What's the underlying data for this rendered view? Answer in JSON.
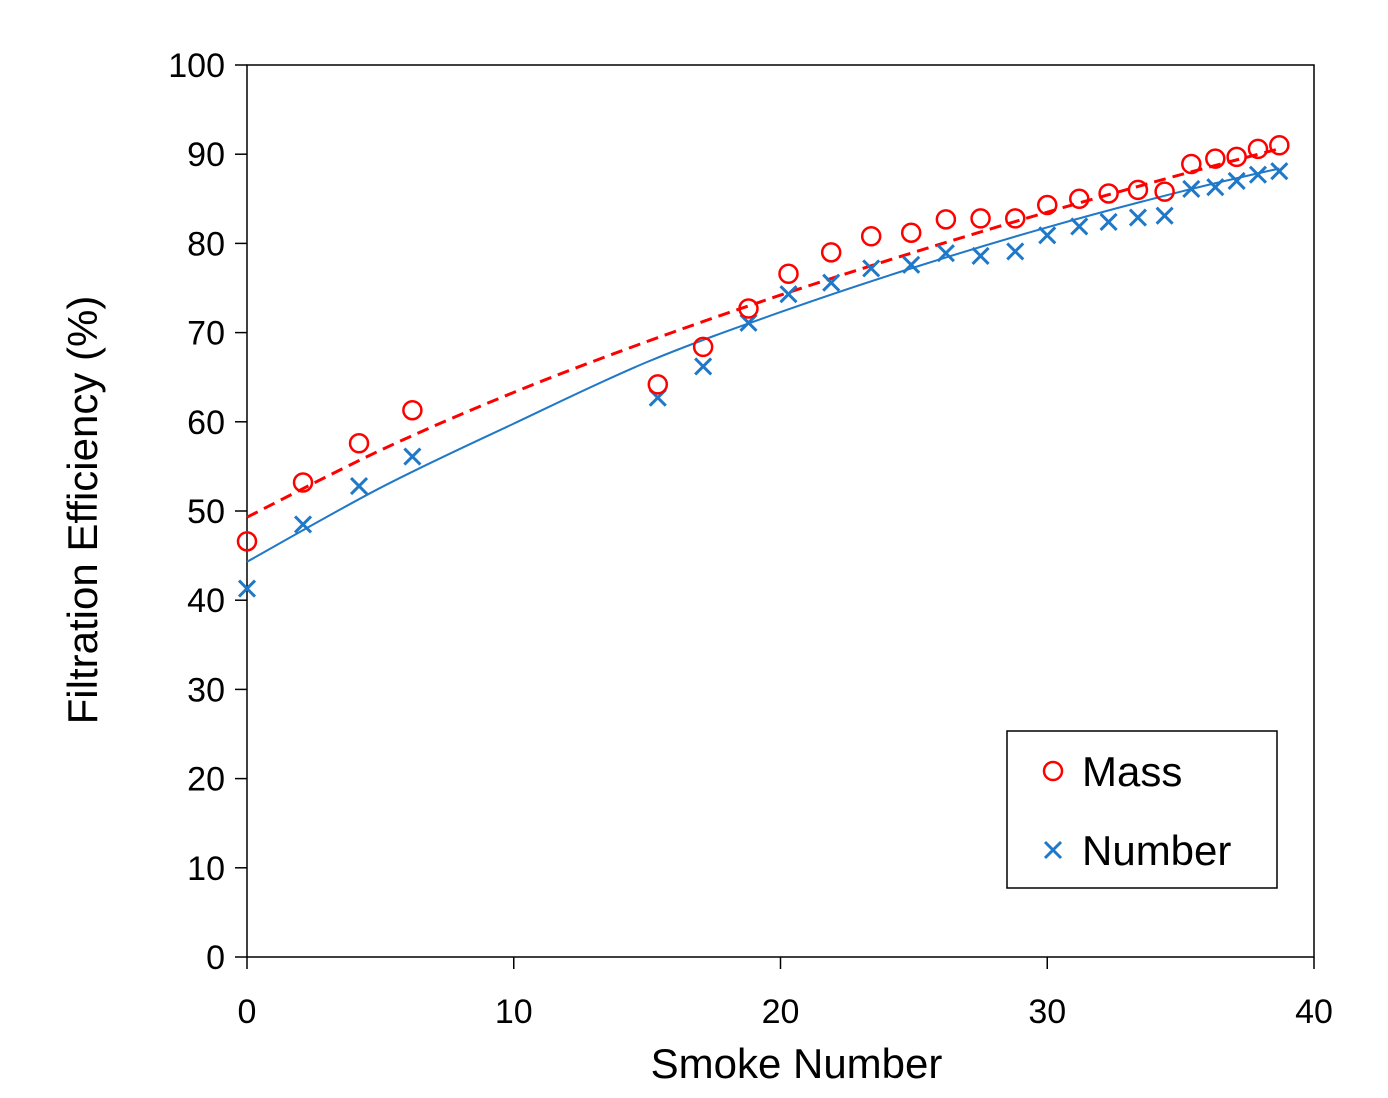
{
  "chart_data": {
    "type": "scatter",
    "xlabel": "Smoke Number",
    "ylabel": "Filtration Efficiency (%)",
    "xlim": [
      0,
      40
    ],
    "ylim": [
      0,
      100
    ],
    "x_ticks": [
      0,
      10,
      20,
      30,
      40
    ],
    "y_ticks": [
      0,
      10,
      20,
      30,
      40,
      50,
      60,
      70,
      80,
      90,
      100
    ],
    "grid": false,
    "legend_position": "bottom-right",
    "series": [
      {
        "name": "Mass",
        "marker": "circle",
        "color": "#ff0000",
        "points": [
          [
            0,
            46.6
          ],
          [
            2.1,
            53.2
          ],
          [
            4.2,
            57.6
          ],
          [
            6.2,
            61.3
          ],
          [
            15.4,
            64.2
          ],
          [
            17.1,
            68.4
          ],
          [
            18.8,
            72.7
          ],
          [
            20.3,
            76.6
          ],
          [
            21.9,
            79.0
          ],
          [
            23.4,
            80.8
          ],
          [
            24.9,
            81.2
          ],
          [
            26.2,
            82.7
          ],
          [
            27.5,
            82.8
          ],
          [
            28.8,
            82.8
          ],
          [
            30.0,
            84.3
          ],
          [
            31.2,
            85.0
          ],
          [
            32.3,
            85.6
          ],
          [
            33.4,
            86.0
          ],
          [
            34.4,
            85.8
          ],
          [
            35.4,
            88.9
          ],
          [
            36.3,
            89.5
          ],
          [
            37.1,
            89.7
          ],
          [
            37.9,
            90.6
          ],
          [
            38.7,
            91.0
          ]
        ],
        "trend": {
          "style": "dashed",
          "color": "#ff0000",
          "points": [
            [
              0,
              49.3
            ],
            [
              5,
              56.8
            ],
            [
              10,
              63.3
            ],
            [
              15,
              69.0
            ],
            [
              20,
              74.2
            ],
            [
              25,
              79.0
            ],
            [
              30,
              83.5
            ],
            [
              35,
              87.7
            ],
            [
              38.7,
              90.6
            ]
          ]
        }
      },
      {
        "name": "Number",
        "marker": "x",
        "color": "#1f78c8",
        "points": [
          [
            0,
            41.3
          ],
          [
            2.1,
            48.5
          ],
          [
            4.2,
            52.8
          ],
          [
            6.2,
            56.1
          ],
          [
            15.4,
            62.7
          ],
          [
            17.1,
            66.2
          ],
          [
            18.8,
            71.1
          ],
          [
            20.3,
            74.3
          ],
          [
            21.9,
            75.6
          ],
          [
            23.4,
            77.2
          ],
          [
            24.9,
            77.6
          ],
          [
            26.2,
            78.9
          ],
          [
            27.5,
            78.6
          ],
          [
            28.8,
            79.1
          ],
          [
            30.0,
            80.9
          ],
          [
            31.2,
            81.9
          ],
          [
            32.3,
            82.4
          ],
          [
            33.4,
            82.9
          ],
          [
            34.4,
            83.1
          ],
          [
            35.4,
            86.1
          ],
          [
            36.3,
            86.3
          ],
          [
            37.1,
            87.0
          ],
          [
            37.9,
            87.7
          ],
          [
            38.7,
            88.1
          ]
        ],
        "trend": {
          "style": "solid",
          "color": "#1f78c8",
          "points": [
            [
              0,
              44.3
            ],
            [
              5,
              52.6
            ],
            [
              10,
              59.8
            ],
            [
              15,
              66.7
            ],
            [
              20,
              72.3
            ],
            [
              25,
              77.3
            ],
            [
              30,
              81.8
            ],
            [
              35,
              85.8
            ],
            [
              38.7,
              88.4
            ]
          ]
        }
      }
    ]
  }
}
